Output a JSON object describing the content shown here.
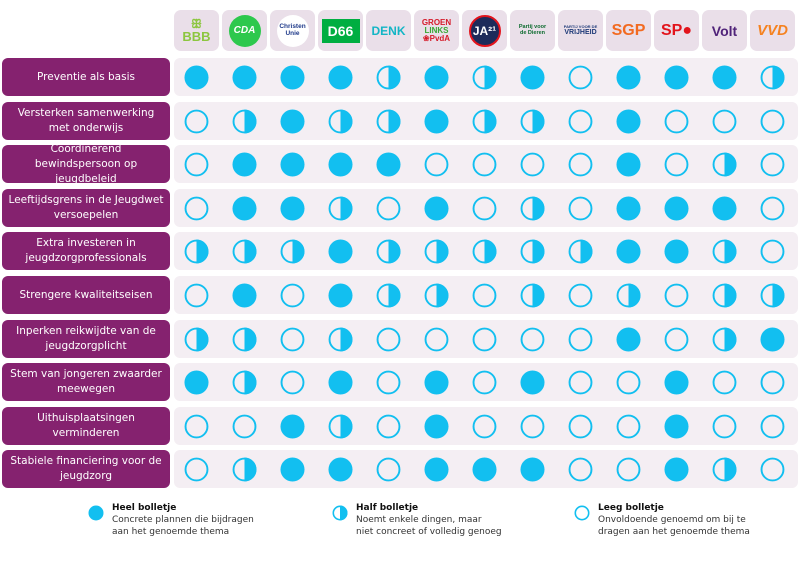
{
  "colors": {
    "dot": "#12bff0",
    "label_bg": "#85226f",
    "track_bg": "#f4eef3",
    "logo_bg": "#eadfe9"
  },
  "chart_data": {
    "type": "table",
    "title": "",
    "columns": [
      "BBB",
      "CDA",
      "ChristenUnie",
      "D66",
      "DENK",
      "GroenLinks-PvdA",
      "JA21",
      "Partij voor de Dieren",
      "Partij voor de Vrijheid",
      "SGP",
      "SP",
      "Volt",
      "VVD"
    ],
    "rows": [
      {
        "label": "Preventie als basis",
        "values": [
          "full",
          "full",
          "full",
          "full",
          "half",
          "full",
          "half",
          "full",
          "empty",
          "full",
          "full",
          "full",
          "half"
        ]
      },
      {
        "label": "Versterken samenwerking met onderwijs",
        "values": [
          "empty",
          "half",
          "full",
          "half",
          "half",
          "full",
          "half",
          "half",
          "empty",
          "full",
          "empty",
          "empty",
          "empty"
        ]
      },
      {
        "label": "Coördinerend bewindspersoon op jeugdbeleid",
        "values": [
          "empty",
          "full",
          "full",
          "full",
          "full",
          "empty",
          "empty",
          "empty",
          "empty",
          "full",
          "empty",
          "half",
          "empty"
        ]
      },
      {
        "label": "Leeftijdsgrens in de Jeugdwet versoepelen",
        "values": [
          "empty",
          "full",
          "full",
          "half",
          "empty",
          "full",
          "empty",
          "half",
          "empty",
          "full",
          "full",
          "full",
          "empty"
        ]
      },
      {
        "label": "Extra investeren in jeugdzorgprofessionals",
        "values": [
          "half",
          "half",
          "half",
          "full",
          "half",
          "half",
          "half",
          "half",
          "half",
          "full",
          "full",
          "half",
          "empty"
        ]
      },
      {
        "label": "Strengere kwaliteitseisen",
        "values": [
          "empty",
          "full",
          "empty",
          "full",
          "half",
          "half",
          "empty",
          "half",
          "empty",
          "half",
          "empty",
          "half",
          "half"
        ]
      },
      {
        "label": "Inperken reikwijdte van de jeugdzorgplicht",
        "values": [
          "half",
          "half",
          "empty",
          "half",
          "empty",
          "empty",
          "empty",
          "empty",
          "empty",
          "full",
          "empty",
          "half",
          "full"
        ]
      },
      {
        "label": "Stem van jongeren zwaarder meewegen",
        "values": [
          "full",
          "half",
          "empty",
          "full",
          "empty",
          "full",
          "empty",
          "full",
          "empty",
          "empty",
          "full",
          "empty",
          "empty"
        ]
      },
      {
        "label": "Uithuisplaatsingen verminderen",
        "values": [
          "empty",
          "empty",
          "full",
          "half",
          "empty",
          "full",
          "empty",
          "empty",
          "empty",
          "empty",
          "full",
          "empty",
          "empty"
        ]
      },
      {
        "label": "Stabiele financiering voor de jeugdzorg",
        "values": [
          "empty",
          "half",
          "full",
          "full",
          "empty",
          "full",
          "full",
          "full",
          "empty",
          "empty",
          "full",
          "half",
          "empty"
        ]
      }
    ],
    "legend": [
      {
        "key": "full",
        "title": "Heel bolletje",
        "desc": "Concrete plannen die bijdragen\naan het genoemde thema"
      },
      {
        "key": "half",
        "title": "Half bolletje",
        "desc": "Noemt enkele dingen, maar\nniet concreet of volledig genoeg"
      },
      {
        "key": "empty",
        "title": "Leeg bolletje",
        "desc": "Onvoldoende genoemd om bij te\ndragen aan het genoemde thema"
      }
    ]
  },
  "logos": [
    {
      "name": "bbb",
      "lines": [
        "ꕥ",
        "BBB"
      ],
      "color": "#8cc63f"
    },
    {
      "name": "cda",
      "lines": [
        "CDA"
      ],
      "color": "#ffffff",
      "circle": "#2dc84d"
    },
    {
      "name": "christenunie",
      "lines": [
        "Christen",
        "Unie"
      ],
      "color": "#1f3a8a",
      "circle": "#ffffff"
    },
    {
      "name": "d66",
      "lines": [
        "D66"
      ],
      "color": "#ffffff",
      "box": "#00ae41"
    },
    {
      "name": "denk",
      "lines": [
        "DENK"
      ],
      "color": "#13b5c5"
    },
    {
      "name": "groenlinks-pvda",
      "lines": [
        "GROEN",
        "LINKS",
        "❀PvdA"
      ],
      "color": "#d51b2a",
      "color2": "#39a935"
    },
    {
      "name": "ja21",
      "lines": [
        "JA²¹"
      ],
      "color": "#ffffff",
      "circle": "#1d2b5a"
    },
    {
      "name": "pvdd",
      "lines": [
        "Partij voor",
        "de Dieren"
      ],
      "color": "#0d6b2f"
    },
    {
      "name": "pvv",
      "lines": [
        "PARTIJ VOOR DE",
        "VRIJHEID"
      ],
      "color": "#1e3a78"
    },
    {
      "name": "sgp",
      "lines": [
        "SGP"
      ],
      "color": "#f26a21"
    },
    {
      "name": "sp",
      "lines": [
        "SP●"
      ],
      "color": "#e2141c"
    },
    {
      "name": "volt",
      "lines": [
        "Volt"
      ],
      "color": "#502379"
    },
    {
      "name": "vvd",
      "lines": [
        "VVD"
      ],
      "color": "#f58220",
      "color2": "#1d3f93"
    }
  ]
}
